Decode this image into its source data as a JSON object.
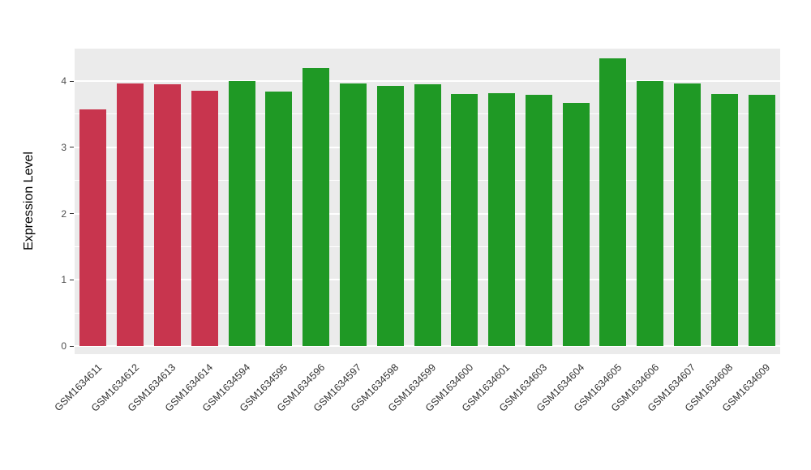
{
  "chart_data": {
    "type": "bar",
    "title": "",
    "xlabel": "",
    "ylabel": "Expression Level",
    "categories": [
      "GSM1634611",
      "GSM1634612",
      "GSM1634613",
      "GSM1634614",
      "GSM1634594",
      "GSM1634595",
      "GSM1634596",
      "GSM1634597",
      "GSM1634598",
      "GSM1634599",
      "GSM1634600",
      "GSM1634601",
      "GSM1634603",
      "GSM1634604",
      "GSM1634605",
      "GSM1634606",
      "GSM1634607",
      "GSM1634608",
      "GSM1634609"
    ],
    "values": [
      3.57,
      3.96,
      3.95,
      3.85,
      4.0,
      3.84,
      4.2,
      3.96,
      3.93,
      3.95,
      3.8,
      3.82,
      3.79,
      3.67,
      4.34,
      4.0,
      3.96,
      3.8,
      3.79
    ],
    "bar_colors": [
      "#C8354E",
      "#C8354E",
      "#C8354E",
      "#C8354E",
      "#1F9925",
      "#1F9925",
      "#1F9925",
      "#1F9925",
      "#1F9925",
      "#1F9925",
      "#1F9925",
      "#1F9925",
      "#1F9925",
      "#1F9925",
      "#1F9925",
      "#1F9925",
      "#1F9925",
      "#1F9925",
      "#1F9925"
    ],
    "palette": {
      "highlight": "#C8354E",
      "normal": "#1F9925"
    },
    "ylim": [
      0,
      4.5
    ],
    "yticks": [
      0,
      1,
      2,
      3,
      4
    ],
    "minor_ticks": [
      0.5,
      1.5,
      2.5,
      3.5
    ],
    "grid": "on",
    "legend": "none",
    "panel_bg": "#EBEBEB",
    "grid_color": "#FFFFFF",
    "axis_text_color": "#4D4D4D"
  }
}
